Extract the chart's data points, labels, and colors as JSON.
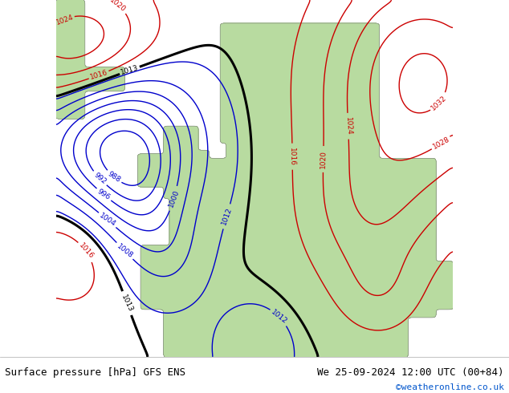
{
  "title_left": "Surface pressure [hPa] GFS ENS",
  "title_right": "We 25-09-2024 12:00 UTC (00+84)",
  "credit": "©weatheronline.co.uk",
  "land_color": "#b8dba0",
  "ocean_color": "#d0d0d0",
  "blue_color": "#0000cc",
  "red_color": "#cc0000",
  "black_color": "#000000",
  "label_fontsize": 6.5,
  "title_fontsize": 9,
  "credit_fontsize": 8
}
